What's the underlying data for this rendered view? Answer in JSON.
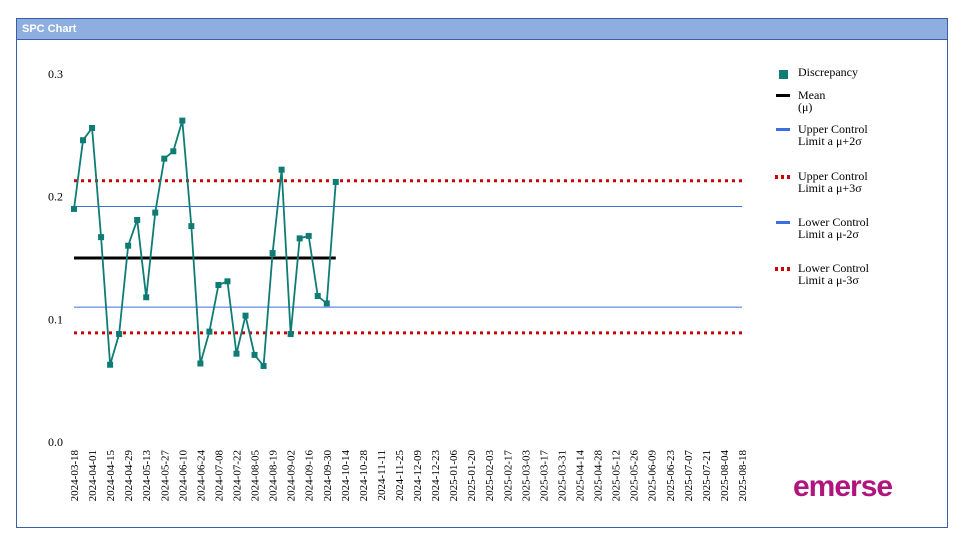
{
  "panel": {
    "title": "SPC Chart"
  },
  "legend_items": [
    {
      "label": "Discrepancy",
      "symbol": "square",
      "color": "#0e7c74"
    },
    {
      "label": "Mean (μ)",
      "symbol": "line",
      "color": "#000000"
    },
    {
      "label": "Upper Control Limit a μ+2σ",
      "symbol": "line",
      "color": "#3a6fe0"
    },
    {
      "label": "Upper Control Limit a μ+3σ",
      "symbol": "dots",
      "color": "#cc0000"
    },
    {
      "label": "Lower Control Limit a μ-2σ",
      "symbol": "line",
      "color": "#3a6fe0"
    },
    {
      "label": "Lower Control Limit a μ-3σ",
      "symbol": "dots",
      "color": "#cc0000"
    }
  ],
  "logo": {
    "text": "emerse",
    "color": "#b0157d"
  },
  "chart_data": {
    "type": "line",
    "y_ticks": [
      "0.0",
      "0.1",
      "0.2",
      "0.3"
    ],
    "ylim": [
      0.0,
      0.3
    ],
    "categories": [
      "2024-03-18",
      "2024-04-01",
      "2024-04-15",
      "2024-04-29",
      "2024-05-13",
      "2024-05-27",
      "2024-06-10",
      "2024-06-24",
      "2024-07-08",
      "2024-07-22",
      "2024-08-05",
      "2024-08-19",
      "2024-09-02",
      "2024-09-16",
      "2024-09-30",
      "2024-10-14",
      "2024-10-28",
      "2024-11-11",
      "2024-11-25",
      "2024-12-09",
      "2024-12-23",
      "2025-01-06",
      "2025-01-20",
      "2025-02-03",
      "2025-02-17",
      "2025-03-03",
      "2025-03-17",
      "2025-03-31",
      "2025-04-14",
      "2025-04-28",
      "2025-05-12",
      "2025-05-26",
      "2025-06-09",
      "2025-06-23",
      "2025-07-07",
      "2025-07-21",
      "2025-08-04",
      "2025-08-18"
    ],
    "series": [
      {
        "name": "Discrepancy",
        "color": "#0e7c74",
        "x": [
          0,
          0.5,
          1,
          1.5,
          2,
          2.5,
          3,
          3.5,
          4,
          4.5,
          5,
          5.5,
          6,
          6.5,
          7,
          7.5,
          8,
          8.5,
          9,
          9.5,
          10,
          10.5,
          11,
          11.5,
          12,
          12.5,
          13,
          13.5,
          14,
          14.5
        ],
        "values": [
          0.19,
          0.246,
          0.256,
          0.167,
          0.063,
          0.088,
          0.16,
          0.181,
          0.118,
          0.187,
          0.231,
          0.237,
          0.262,
          0.176,
          0.064,
          0.09,
          0.128,
          0.131,
          0.072,
          0.103,
          0.071,
          0.062,
          0.154,
          0.222,
          0.088,
          0.166,
          0.168,
          0.119,
          0.113,
          0.212
        ]
      }
    ],
    "mean": {
      "name": "Mean (μ)",
      "value": 0.15,
      "x_end": 14.5,
      "color": "#000000"
    },
    "ucl2": {
      "name": "Upper Control Limit a μ+2σ",
      "value": 0.192,
      "color": "#3a6fe0"
    },
    "ucl3": {
      "name": "Upper Control Limit a μ+3σ",
      "value": 0.213,
      "color": "#cc0000"
    },
    "lcl2": {
      "name": "Lower Control Limit a μ-2σ",
      "value": 0.11,
      "color": "#3a6fe0"
    },
    "lcl3": {
      "name": "Lower Control Limit a μ-3σ",
      "value": 0.089,
      "color": "#cc0000"
    },
    "grid": false,
    "legend_position": "right"
  }
}
